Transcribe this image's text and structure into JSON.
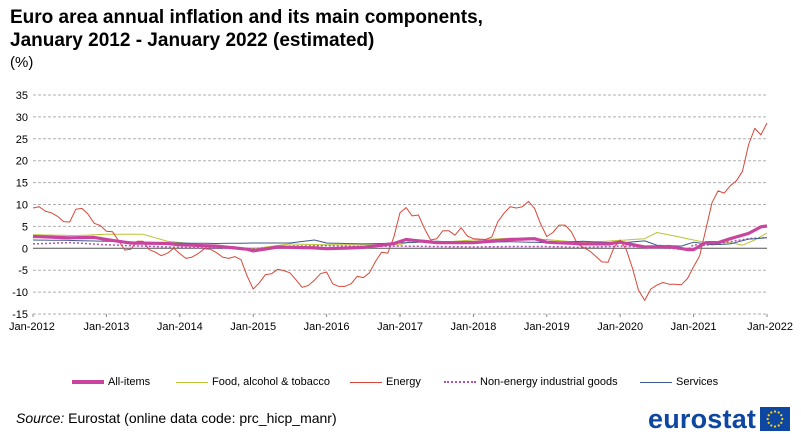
{
  "header": {
    "title_line1": "Euro area annual inflation and its main components,",
    "title_line2": "January 2012 - January 2022 (estimated)",
    "unit": "(%)"
  },
  "footer": {
    "source_label": "Source:",
    "source_text": " Eurostat (online data code: prc_hicp_manr)",
    "logo_text": "eurostat"
  },
  "colors": {
    "all_items": "#c8449e",
    "food": "#bcc234",
    "energy": "#d9473a",
    "non_energy": "#b14fb6",
    "services": "#3b5b8e",
    "grid": "#b0b0b0",
    "logo": "#0e47a1"
  },
  "chart_data": {
    "type": "line",
    "title": "Euro area annual inflation and its main components, January 2012 - January 2022 (estimated)",
    "ylabel": "(%)",
    "ylim": [
      -15,
      35
    ],
    "yticks": [
      -15,
      -10,
      -5,
      0,
      5,
      10,
      15,
      20,
      25,
      30,
      35
    ],
    "x_start": "Jan-2012",
    "x_end": "Jan-2022",
    "x_step": "monthly",
    "xtick_labels": [
      "Jan-2012",
      "Jan-2013",
      "Jan-2014",
      "Jan-2015",
      "Jan-2016",
      "Jan-2017",
      "Jan-2018",
      "Jan-2019",
      "Jan-2020",
      "Jan-2021",
      "Jan-2022"
    ],
    "grid": true,
    "legend_position": "bottom",
    "series": [
      {
        "name": "All-items",
        "key": "all_items",
        "anchors": [
          [
            0,
            2.7
          ],
          [
            6,
            2.4
          ],
          [
            10,
            2.5
          ],
          [
            12,
            2.0
          ],
          [
            16,
            1.2
          ],
          [
            22,
            1.1
          ],
          [
            24,
            0.8
          ],
          [
            30,
            0.5
          ],
          [
            35,
            -0.2
          ],
          [
            36,
            -0.6
          ],
          [
            40,
            0.3
          ],
          [
            46,
            0.1
          ],
          [
            48,
            -0.1
          ],
          [
            54,
            0.2
          ],
          [
            59,
            1.1
          ],
          [
            61,
            2.0
          ],
          [
            66,
            1.3
          ],
          [
            72,
            1.3
          ],
          [
            78,
            2.0
          ],
          [
            82,
            2.2
          ],
          [
            84,
            1.4
          ],
          [
            90,
            1.0
          ],
          [
            94,
            1.0
          ],
          [
            96,
            1.4
          ],
          [
            100,
            0.3
          ],
          [
            104,
            0.4
          ],
          [
            107,
            -0.3
          ],
          [
            108,
            -0.3
          ],
          [
            110,
            1.3
          ],
          [
            112,
            1.3
          ],
          [
            114,
            2.2
          ],
          [
            117,
            3.4
          ],
          [
            119,
            4.9
          ],
          [
            120,
            5.1
          ]
        ]
      },
      {
        "name": "Food, alcohol & tobacco",
        "key": "food",
        "anchors": [
          [
            0,
            3.1
          ],
          [
            7,
            2.9
          ],
          [
            12,
            3.2
          ],
          [
            18,
            3.2
          ],
          [
            22,
            1.6
          ],
          [
            30,
            0.5
          ],
          [
            34,
            0.0
          ],
          [
            36,
            -0.1
          ],
          [
            42,
            1.0
          ],
          [
            48,
            0.8
          ],
          [
            54,
            0.8
          ],
          [
            60,
            0.8
          ],
          [
            62,
            1.8
          ],
          [
            66,
            1.3
          ],
          [
            72,
            1.9
          ],
          [
            78,
            2.3
          ],
          [
            84,
            2.0
          ],
          [
            90,
            1.3
          ],
          [
            96,
            1.8
          ],
          [
            100,
            2.2
          ],
          [
            102,
            3.6
          ],
          [
            106,
            2.5
          ],
          [
            110,
            1.3
          ],
          [
            114,
            1.3
          ],
          [
            116,
            0.7
          ],
          [
            118,
            1.9
          ],
          [
            120,
            3.5
          ]
        ]
      },
      {
        "name": "Energy",
        "key": "energy",
        "anchors": [
          [
            0,
            9.2
          ],
          [
            1,
            9.5
          ],
          [
            2,
            8.5
          ],
          [
            3,
            8.1
          ],
          [
            4,
            7.3
          ],
          [
            5,
            6.1
          ],
          [
            6,
            6.0
          ],
          [
            7,
            8.9
          ],
          [
            8,
            9.1
          ],
          [
            9,
            7.8
          ],
          [
            10,
            5.7
          ],
          [
            11,
            5.2
          ],
          [
            12,
            3.9
          ],
          [
            13,
            3.8
          ],
          [
            14,
            1.7
          ],
          [
            15,
            -0.4
          ],
          [
            16,
            -0.2
          ],
          [
            17,
            1.6
          ],
          [
            18,
            1.6
          ],
          [
            19,
            -0.3
          ],
          [
            20,
            -0.9
          ],
          [
            21,
            -1.7
          ],
          [
            22,
            -1.1
          ],
          [
            23,
            0.0
          ],
          [
            24,
            -1.2
          ],
          [
            25,
            -2.3
          ],
          [
            26,
            -2.0
          ],
          [
            27,
            -1.2
          ],
          [
            28,
            -0.1
          ],
          [
            29,
            -0.2
          ],
          [
            30,
            -1.0
          ],
          [
            31,
            -2.0
          ],
          [
            32,
            -2.3
          ],
          [
            33,
            -1.9
          ],
          [
            34,
            -2.6
          ],
          [
            35,
            -6.3
          ],
          [
            36,
            -9.3
          ],
          [
            37,
            -7.9
          ],
          [
            38,
            -6.0
          ],
          [
            39,
            -5.8
          ],
          [
            40,
            -4.8
          ],
          [
            41,
            -5.1
          ],
          [
            42,
            -5.6
          ],
          [
            43,
            -7.2
          ],
          [
            44,
            -8.9
          ],
          [
            45,
            -8.5
          ],
          [
            46,
            -7.3
          ],
          [
            47,
            -5.8
          ],
          [
            48,
            -5.4
          ],
          [
            49,
            -8.1
          ],
          [
            50,
            -8.7
          ],
          [
            51,
            -8.7
          ],
          [
            52,
            -8.1
          ],
          [
            53,
            -6.4
          ],
          [
            54,
            -6.7
          ],
          [
            55,
            -5.6
          ],
          [
            56,
            -3.0
          ],
          [
            57,
            -0.9
          ],
          [
            58,
            -1.1
          ],
          [
            59,
            2.6
          ],
          [
            60,
            8.1
          ],
          [
            61,
            9.3
          ],
          [
            62,
            7.4
          ],
          [
            63,
            7.6
          ],
          [
            64,
            4.5
          ],
          [
            65,
            1.9
          ],
          [
            66,
            2.2
          ],
          [
            67,
            4.0
          ],
          [
            68,
            4.0
          ],
          [
            69,
            3.0
          ],
          [
            70,
            4.7
          ],
          [
            71,
            2.8
          ],
          [
            72,
            2.2
          ],
          [
            73,
            2.1
          ],
          [
            74,
            2.0
          ],
          [
            75,
            2.6
          ],
          [
            76,
            6.1
          ],
          [
            77,
            8.0
          ],
          [
            78,
            9.5
          ],
          [
            79,
            9.2
          ],
          [
            80,
            9.5
          ],
          [
            81,
            10.7
          ],
          [
            82,
            9.1
          ],
          [
            83,
            5.5
          ],
          [
            84,
            2.7
          ],
          [
            85,
            3.6
          ],
          [
            86,
            5.3
          ],
          [
            87,
            5.3
          ],
          [
            88,
            3.8
          ],
          [
            89,
            1.0
          ],
          [
            90,
            0.2
          ],
          [
            91,
            -0.6
          ],
          [
            92,
            -1.8
          ],
          [
            93,
            -3.1
          ],
          [
            94,
            -3.2
          ],
          [
            95,
            0.2
          ],
          [
            96,
            1.9
          ],
          [
            97,
            -0.3
          ],
          [
            98,
            -4.5
          ],
          [
            99,
            -9.6
          ],
          [
            100,
            -11.9
          ],
          [
            101,
            -9.3
          ],
          [
            102,
            -8.4
          ],
          [
            103,
            -7.8
          ],
          [
            104,
            -8.2
          ],
          [
            105,
            -8.2
          ],
          [
            106,
            -8.3
          ],
          [
            107,
            -6.9
          ],
          [
            108,
            -4.2
          ],
          [
            109,
            -1.7
          ],
          [
            110,
            4.3
          ],
          [
            111,
            10.4
          ],
          [
            112,
            13.1
          ],
          [
            113,
            12.6
          ],
          [
            114,
            14.3
          ],
          [
            115,
            15.4
          ],
          [
            116,
            17.6
          ],
          [
            117,
            23.7
          ],
          [
            118,
            27.4
          ],
          [
            119,
            25.9
          ],
          [
            120,
            28.6
          ]
        ]
      },
      {
        "name": "Non-energy industrial goods",
        "key": "non_energy",
        "dashed": true,
        "anchors": [
          [
            0,
            1.0
          ],
          [
            6,
            1.3
          ],
          [
            12,
            0.8
          ],
          [
            22,
            0.3
          ],
          [
            30,
            0.0
          ],
          [
            36,
            -0.1
          ],
          [
            42,
            0.5
          ],
          [
            48,
            0.6
          ],
          [
            54,
            0.4
          ],
          [
            60,
            0.5
          ],
          [
            66,
            0.4
          ],
          [
            72,
            0.3
          ],
          [
            78,
            0.4
          ],
          [
            84,
            0.4
          ],
          [
            90,
            0.2
          ],
          [
            96,
            0.5
          ],
          [
            102,
            0.2
          ],
          [
            107,
            -0.3
          ],
          [
            108,
            0.8
          ],
          [
            110,
            0.7
          ],
          [
            114,
            1.5
          ],
          [
            117,
            2.2
          ],
          [
            120,
            2.5
          ]
        ]
      },
      {
        "name": "Services",
        "key": "services",
        "anchors": [
          [
            0,
            1.9
          ],
          [
            6,
            1.8
          ],
          [
            12,
            1.6
          ],
          [
            18,
            1.4
          ],
          [
            24,
            1.2
          ],
          [
            30,
            1.1
          ],
          [
            36,
            1.2
          ],
          [
            42,
            1.2
          ],
          [
            46,
            1.9
          ],
          [
            48,
            1.2
          ],
          [
            54,
            1.0
          ],
          [
            60,
            1.2
          ],
          [
            66,
            1.6
          ],
          [
            72,
            1.3
          ],
          [
            78,
            1.5
          ],
          [
            84,
            1.3
          ],
          [
            90,
            1.6
          ],
          [
            96,
            1.2
          ],
          [
            100,
            1.7
          ],
          [
            102,
            0.7
          ],
          [
            106,
            0.5
          ],
          [
            108,
            1.4
          ],
          [
            111,
            0.8
          ],
          [
            114,
            1.0
          ],
          [
            117,
            2.1
          ],
          [
            120,
            2.4
          ]
        ]
      }
    ]
  }
}
